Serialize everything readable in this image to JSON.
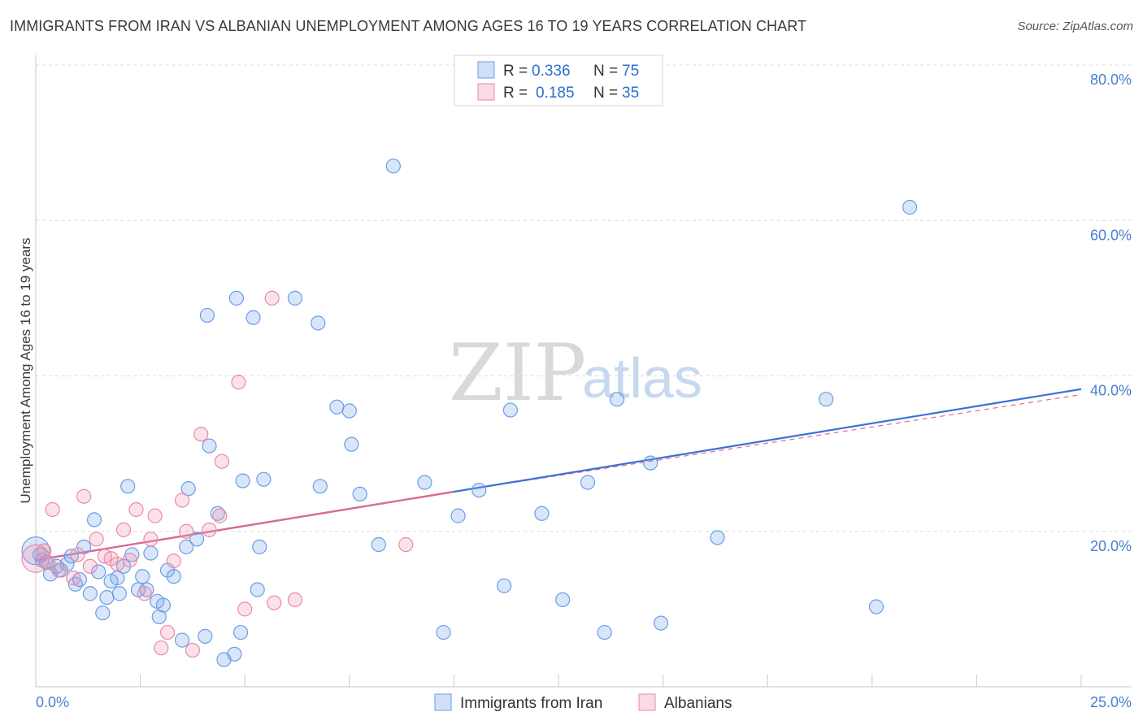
{
  "title": "IMMIGRANTS FROM IRAN VS ALBANIAN UNEMPLOYMENT AMONG AGES 16 TO 19 YEARS CORRELATION CHART",
  "source": "Source: ZipAtlas.com",
  "watermark": {
    "zip": "ZIP",
    "atlas": "atlas"
  },
  "colors": {
    "blue": "#6b9de8",
    "blue_fill": "rgba(120,165,235,0.28)",
    "blue_line": "#3a72d6",
    "pink": "#ea8aa6",
    "pink_fill": "rgba(240,150,180,0.28)",
    "pink_line": "#e0688f",
    "grid": "#dcdcdc",
    "axis_label": "#4a7fd0"
  },
  "legend": {
    "rows": [
      {
        "r_label": "R =",
        "r_value": "0.336",
        "n_label": "N =",
        "n_value": "75"
      },
      {
        "r_label": "R =",
        "r_value": "0.185",
        "n_label": "N =",
        "n_value": "35"
      }
    ]
  },
  "chart_data": {
    "type": "scatter",
    "title": "IMMIGRANTS FROM IRAN VS ALBANIAN UNEMPLOYMENT AMONG AGES 16 TO 19 YEARS CORRELATION CHART",
    "xlabel": "",
    "ylabel": "Unemployment Among Ages 16 to 19 years",
    "xlim": [
      0,
      25
    ],
    "ylim": [
      0,
      80
    ],
    "x_tick_labels": [
      "0.0%",
      "25.0%"
    ],
    "y_ticks": [
      20,
      40,
      60,
      80
    ],
    "y_tick_labels": [
      "20.0%",
      "40.0%",
      "60.0%",
      "80.0%"
    ],
    "grid": true,
    "legend_position": "top-center",
    "series": [
      {
        "name": "Immigrants from Iran",
        "color": "#6b9de8",
        "trend": {
          "x": [
            0,
            25
          ],
          "y": [
            16.3,
            38.3
          ]
        },
        "points": [
          {
            "x": 0.0,
            "y": 17.5,
            "big": true
          },
          {
            "x": 0.1,
            "y": 17.0
          },
          {
            "x": 0.15,
            "y": 16.3
          },
          {
            "x": 0.25,
            "y": 16.0
          },
          {
            "x": 0.35,
            "y": 14.5
          },
          {
            "x": 0.5,
            "y": 15.5
          },
          {
            "x": 0.6,
            "y": 15.0
          },
          {
            "x": 0.75,
            "y": 15.8
          },
          {
            "x": 0.85,
            "y": 16.8
          },
          {
            "x": 0.95,
            "y": 13.2
          },
          {
            "x": 1.05,
            "y": 13.8
          },
          {
            "x": 1.15,
            "y": 18.0
          },
          {
            "x": 1.3,
            "y": 12.0
          },
          {
            "x": 1.4,
            "y": 21.5
          },
          {
            "x": 1.5,
            "y": 14.8
          },
          {
            "x": 1.6,
            "y": 9.5
          },
          {
            "x": 1.7,
            "y": 11.5
          },
          {
            "x": 1.8,
            "y": 13.6
          },
          {
            "x": 1.95,
            "y": 14.0
          },
          {
            "x": 2.0,
            "y": 12.0
          },
          {
            "x": 2.1,
            "y": 15.5
          },
          {
            "x": 2.2,
            "y": 25.8
          },
          {
            "x": 2.3,
            "y": 17.0
          },
          {
            "x": 2.45,
            "y": 12.5
          },
          {
            "x": 2.55,
            "y": 14.2
          },
          {
            "x": 2.65,
            "y": 12.5
          },
          {
            "x": 2.75,
            "y": 17.2
          },
          {
            "x": 2.9,
            "y": 11.0
          },
          {
            "x": 2.95,
            "y": 9.0
          },
          {
            "x": 3.05,
            "y": 10.5
          },
          {
            "x": 3.15,
            "y": 15.0
          },
          {
            "x": 3.3,
            "y": 14.2
          },
          {
            "x": 3.5,
            "y": 6.0
          },
          {
            "x": 3.6,
            "y": 18.0
          },
          {
            "x": 3.65,
            "y": 25.5
          },
          {
            "x": 3.85,
            "y": 19.0
          },
          {
            "x": 4.05,
            "y": 6.5
          },
          {
            "x": 4.1,
            "y": 47.8
          },
          {
            "x": 4.15,
            "y": 31.0
          },
          {
            "x": 4.35,
            "y": 22.3
          },
          {
            "x": 4.5,
            "y": 3.5
          },
          {
            "x": 4.75,
            "y": 4.2
          },
          {
            "x": 4.8,
            "y": 50.0
          },
          {
            "x": 4.9,
            "y": 7.0
          },
          {
            "x": 4.95,
            "y": 26.5
          },
          {
            "x": 5.2,
            "y": 47.5
          },
          {
            "x": 5.3,
            "y": 12.5
          },
          {
            "x": 5.35,
            "y": 18.0
          },
          {
            "x": 5.45,
            "y": 26.7
          },
          {
            "x": 6.2,
            "y": 50.0
          },
          {
            "x": 6.75,
            "y": 46.8
          },
          {
            "x": 6.8,
            "y": 25.8
          },
          {
            "x": 7.2,
            "y": 36.0
          },
          {
            "x": 7.5,
            "y": 35.5
          },
          {
            "x": 7.55,
            "y": 31.2
          },
          {
            "x": 7.75,
            "y": 24.8
          },
          {
            "x": 8.2,
            "y": 18.3
          },
          {
            "x": 8.55,
            "y": 67.0
          },
          {
            "x": 9.3,
            "y": 26.3
          },
          {
            "x": 9.75,
            "y": 7.0
          },
          {
            "x": 10.1,
            "y": 22.0
          },
          {
            "x": 10.6,
            "y": 25.3
          },
          {
            "x": 11.2,
            "y": 13.0
          },
          {
            "x": 11.35,
            "y": 35.6
          },
          {
            "x": 12.1,
            "y": 22.3
          },
          {
            "x": 12.6,
            "y": 11.2
          },
          {
            "x": 13.2,
            "y": 26.3
          },
          {
            "x": 13.6,
            "y": 7.0
          },
          {
            "x": 13.9,
            "y": 37.0
          },
          {
            "x": 14.7,
            "y": 28.8
          },
          {
            "x": 14.95,
            "y": 8.2
          },
          {
            "x": 16.3,
            "y": 19.2
          },
          {
            "x": 18.9,
            "y": 37.0
          },
          {
            "x": 20.1,
            "y": 10.3
          },
          {
            "x": 20.9,
            "y": 61.7
          }
        ]
      },
      {
        "name": "Albanians",
        "color": "#ea8aa6",
        "trend": {
          "x": [
            0,
            10.0
          ],
          "y": [
            16.3,
            25.1
          ]
        },
        "trend_dashed": {
          "x": [
            10.0,
            25
          ],
          "y": [
            25.1,
            37.6
          ]
        },
        "points": [
          {
            "x": 0.0,
            "y": 16.5,
            "big": true
          },
          {
            "x": 0.2,
            "y": 17.5
          },
          {
            "x": 0.4,
            "y": 22.8
          },
          {
            "x": 0.55,
            "y": 15.0
          },
          {
            "x": 0.9,
            "y": 14.0
          },
          {
            "x": 1.0,
            "y": 17.0
          },
          {
            "x": 1.15,
            "y": 24.5
          },
          {
            "x": 1.3,
            "y": 15.5
          },
          {
            "x": 1.45,
            "y": 19.0
          },
          {
            "x": 1.65,
            "y": 16.8
          },
          {
            "x": 1.8,
            "y": 16.5
          },
          {
            "x": 1.95,
            "y": 15.8
          },
          {
            "x": 2.1,
            "y": 20.2
          },
          {
            "x": 2.25,
            "y": 16.3
          },
          {
            "x": 2.4,
            "y": 22.8
          },
          {
            "x": 2.6,
            "y": 12.0
          },
          {
            "x": 2.75,
            "y": 19.0
          },
          {
            "x": 2.85,
            "y": 22.0
          },
          {
            "x": 3.0,
            "y": 5.0
          },
          {
            "x": 3.15,
            "y": 7.0
          },
          {
            "x": 3.3,
            "y": 16.2
          },
          {
            "x": 3.5,
            "y": 24.0
          },
          {
            "x": 3.6,
            "y": 20.0
          },
          {
            "x": 3.75,
            "y": 4.7
          },
          {
            "x": 3.95,
            "y": 32.5
          },
          {
            "x": 4.15,
            "y": 20.2
          },
          {
            "x": 4.4,
            "y": 22.0
          },
          {
            "x": 4.45,
            "y": 29.0
          },
          {
            "x": 4.85,
            "y": 39.2
          },
          {
            "x": 5.0,
            "y": 10.0
          },
          {
            "x": 5.7,
            "y": 10.8
          },
          {
            "x": 5.65,
            "y": 50.0
          },
          {
            "x": 6.2,
            "y": 11.2
          },
          {
            "x": 8.85,
            "y": 18.3
          },
          {
            "x": 0.3,
            "y": 16.0
          }
        ]
      }
    ]
  }
}
